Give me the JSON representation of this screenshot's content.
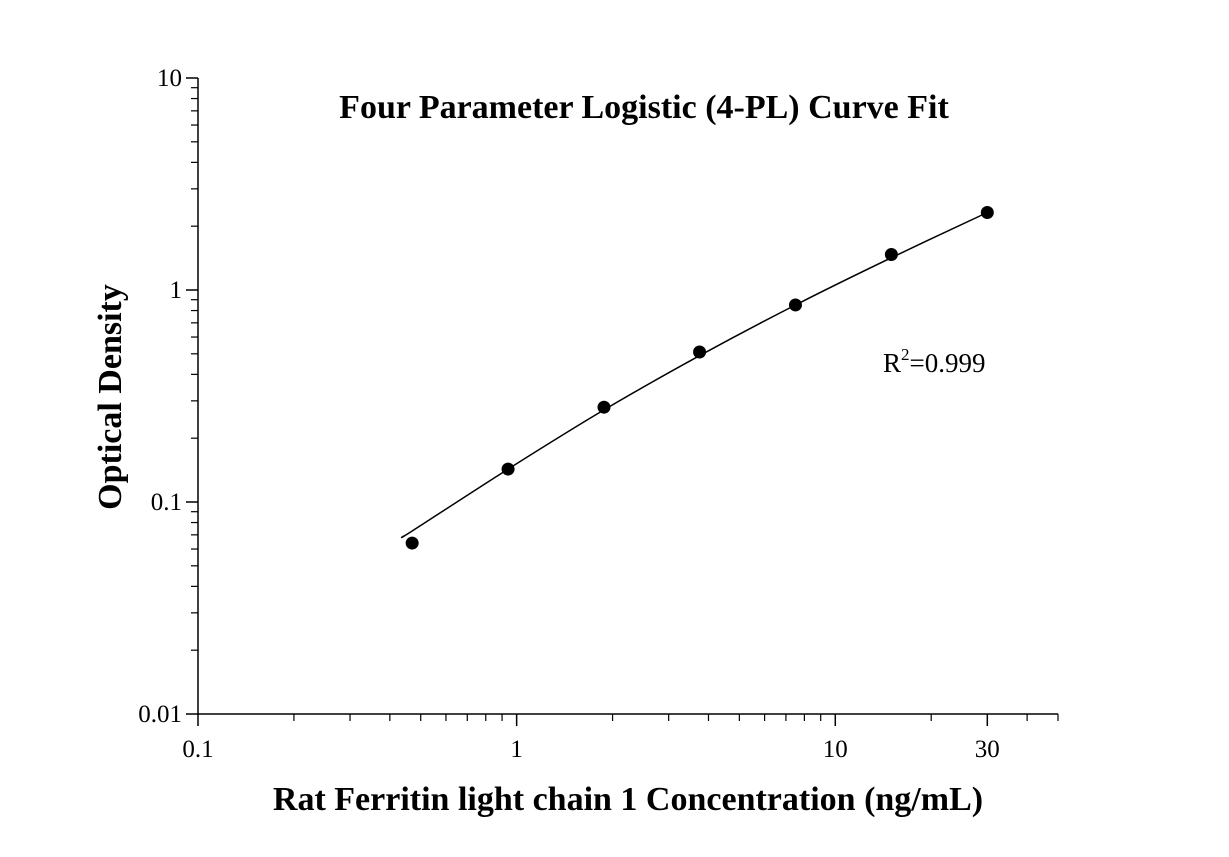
{
  "chart_data": {
    "type": "scatter",
    "title": "Four Parameter Logistic (4-PL) Curve Fit",
    "xlabel": "Rat Ferritin light chain 1 Concentration (ng/mL)",
    "ylabel": "Optical Density",
    "xscale": "log",
    "yscale": "log",
    "xlim": [
      0.1,
      30
    ],
    "ylim": [
      0.01,
      10
    ],
    "x_ticks": [
      "0.1",
      "1",
      "10",
      "30"
    ],
    "y_ticks": [
      "0.01",
      "0.1",
      "1",
      "10"
    ],
    "grid": false,
    "legend": "none",
    "series": [
      {
        "x": [
          0.47,
          0.94,
          1.88,
          3.75,
          7.5,
          15,
          30
        ],
        "y": [
          0.064,
          0.143,
          0.28,
          0.51,
          0.85,
          1.47,
          2.32
        ]
      }
    ],
    "fit_curve": {
      "x": [
        0.44,
        0.47,
        0.94,
        1.88,
        3.75,
        7.5,
        15,
        30
      ],
      "y": [
        0.069,
        0.073,
        0.143,
        0.272,
        0.49,
        0.85,
        1.42,
        2.32
      ]
    },
    "annotation": {
      "base": "R",
      "sup": "2",
      "rest": "=0.999"
    },
    "colors": {
      "marker": "#000000",
      "line": "#000000",
      "axis": "#000000"
    }
  }
}
